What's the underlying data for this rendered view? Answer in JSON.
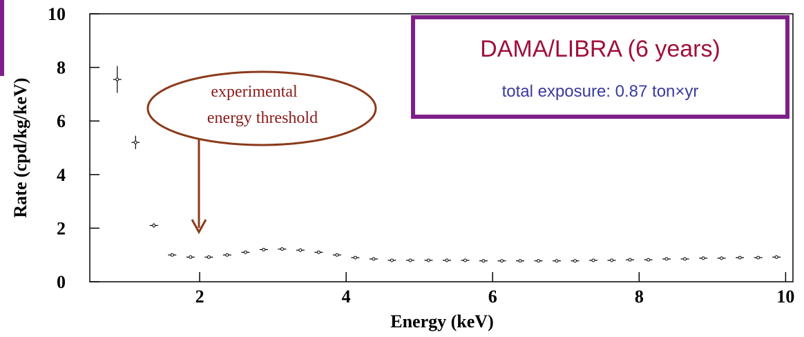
{
  "chart_data": {
    "type": "scatter",
    "title": "DAMA/LIBRA (6 years)",
    "subtitle": "total exposure: 0.87 ton×yr",
    "x_label": "Energy (keV)",
    "y_label": "Rate (cpd/kg/keV)",
    "annotation": [
      "experimental",
      "energy threshold"
    ],
    "x": [
      0.875,
      1.125,
      1.375,
      1.625,
      1.875,
      2.125,
      2.375,
      2.625,
      2.875,
      3.125,
      3.375,
      3.625,
      3.875,
      4.125,
      4.375,
      4.625,
      4.875,
      5.125,
      5.375,
      5.625,
      5.875,
      6.125,
      6.375,
      6.625,
      6.875,
      7.125,
      7.375,
      7.625,
      7.875,
      8.125,
      8.375,
      8.625,
      8.875,
      9.125,
      9.375,
      9.625,
      9.875
    ],
    "values": [
      7.55,
      5.2,
      2.1,
      1.0,
      0.92,
      0.92,
      1.0,
      1.1,
      1.2,
      1.22,
      1.18,
      1.1,
      1.0,
      0.9,
      0.85,
      0.8,
      0.8,
      0.8,
      0.8,
      0.8,
      0.78,
      0.78,
      0.78,
      0.78,
      0.78,
      0.78,
      0.8,
      0.8,
      0.82,
      0.82,
      0.85,
      0.85,
      0.88,
      0.88,
      0.9,
      0.9,
      0.92
    ],
    "errors": [
      0.5,
      0.25,
      0.08,
      0.04,
      0.03,
      0.03,
      0.03,
      0.03,
      0.03,
      0.03,
      0.03,
      0.03,
      0.03,
      0.03,
      0.03,
      0.03,
      0.03,
      0.03,
      0.03,
      0.03,
      0.03,
      0.03,
      0.03,
      0.03,
      0.03,
      0.03,
      0.03,
      0.03,
      0.03,
      0.03,
      0.03,
      0.03,
      0.03,
      0.03,
      0.03,
      0.03,
      0.03
    ],
    "color": "#000000",
    "xlim": [
      0.5,
      10.1
    ],
    "ylim": [
      0,
      10
    ],
    "xticks": [
      2,
      4,
      6,
      8,
      10
    ],
    "yticks": [
      0,
      2,
      4,
      6,
      8,
      10
    ]
  }
}
